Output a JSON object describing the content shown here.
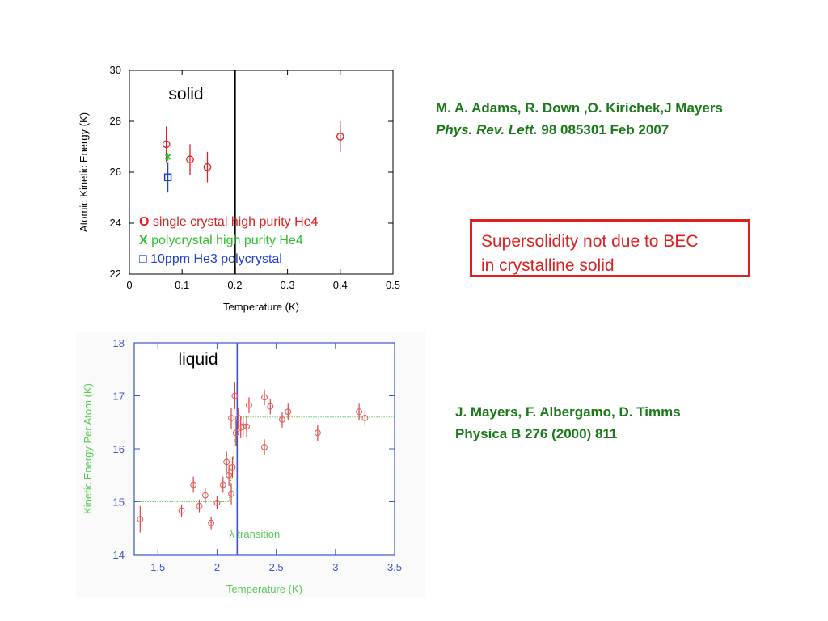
{
  "references": {
    "solid": {
      "authors": "M. A. Adams, R. Down ,O. Kirichek,J Mayers",
      "journal": "Phys. Rev. Lett.",
      "details": " 98 085301 Feb 2007"
    },
    "liquid": {
      "authors": "J. Mayers, F. Albergamo, D. Timms",
      "details": "Physica B 276 (2000) 811"
    }
  },
  "callout": {
    "line1": "Supersolidity not due to BEC",
    "line2": "in crystalline solid"
  },
  "colors": {
    "red": "#e02020",
    "green": "#2fbf2f",
    "blue": "#2040d0",
    "ref_green": "#1a7a1a",
    "liquid_axis": "#3a56c8",
    "liquid_label": "#55cc55",
    "liquid_point": "#e06060"
  },
  "chart_data": [
    {
      "type": "scatter",
      "annotation": "solid",
      "xlabel": "Temperature (K)",
      "ylabel": "Atomic Kinetic Energy (K)",
      "xlim": [
        0,
        0.5
      ],
      "ylim": [
        22,
        30
      ],
      "xticks": [
        "0",
        "0.1",
        "0.2",
        "0.3",
        "0.4",
        "0.5"
      ],
      "yticks": [
        "22",
        "24",
        "26",
        "28",
        "30"
      ],
      "vline": 0.2,
      "legend": [
        {
          "marker": "O",
          "text": " single crystal high purity He4"
        },
        {
          "marker": "X",
          "text": " polycrystal high purity He4"
        },
        {
          "marker": "□",
          "text": " 10ppm He3 polycrystal"
        }
      ],
      "series": [
        {
          "marker": "circle",
          "points": [
            {
              "x": 0.07,
              "y": 27.1,
              "err": 0.7
            },
            {
              "x": 0.115,
              "y": 26.5,
              "err": 0.6
            },
            {
              "x": 0.148,
              "y": 26.2,
              "err": 0.6
            },
            {
              "x": 0.4,
              "y": 27.4,
              "err": 0.6
            }
          ]
        },
        {
          "marker": "cross",
          "points": [
            {
              "x": 0.073,
              "y": 26.6,
              "err": 0.15
            }
          ]
        },
        {
          "marker": "square",
          "points": [
            {
              "x": 0.073,
              "y": 25.8,
              "err": 0.6
            }
          ]
        }
      ]
    },
    {
      "type": "scatter",
      "annotation": "liquid",
      "xlabel": "Temperature (K)",
      "ylabel": "Kinetic Energy Per Atom (K)",
      "xlim": [
        1.3,
        3.5
      ],
      "ylim": [
        14,
        18
      ],
      "xticks": [
        "1.5",
        "2",
        "2.5",
        "3",
        "3.5"
      ],
      "yticks": [
        "14",
        "15",
        "16",
        "17",
        "18"
      ],
      "vline": 2.17,
      "vline_label": "λ transition",
      "fit": [
        [
          1.33,
          15.0
        ],
        [
          2.1,
          15.0
        ],
        [
          2.17,
          16.6
        ],
        [
          3.5,
          16.6
        ]
      ],
      "points": [
        {
          "x": 1.35,
          "y": 14.67,
          "err": 0.25
        },
        {
          "x": 1.7,
          "y": 14.83,
          "err": 0.12
        },
        {
          "x": 1.8,
          "y": 15.32,
          "err": 0.15
        },
        {
          "x": 1.85,
          "y": 14.92,
          "err": 0.12
        },
        {
          "x": 1.9,
          "y": 15.12,
          "err": 0.15
        },
        {
          "x": 1.95,
          "y": 14.6,
          "err": 0.12
        },
        {
          "x": 2.0,
          "y": 14.98,
          "err": 0.12
        },
        {
          "x": 2.05,
          "y": 15.32,
          "err": 0.15
        },
        {
          "x": 2.08,
          "y": 15.75,
          "err": 0.2
        },
        {
          "x": 2.1,
          "y": 15.5,
          "err": 0.2
        },
        {
          "x": 2.12,
          "y": 16.58,
          "err": 0.2
        },
        {
          "x": 2.13,
          "y": 15.65,
          "err": 0.2
        },
        {
          "x": 2.12,
          "y": 15.15,
          "err": 0.2
        },
        {
          "x": 2.15,
          "y": 17.0,
          "err": 0.25
        },
        {
          "x": 2.16,
          "y": 16.3,
          "err": 0.25
        },
        {
          "x": 2.18,
          "y": 16.58,
          "err": 0.2
        },
        {
          "x": 2.2,
          "y": 16.4,
          "err": 0.2
        },
        {
          "x": 2.22,
          "y": 16.42,
          "err": 0.2
        },
        {
          "x": 2.25,
          "y": 16.42,
          "err": 0.2
        },
        {
          "x": 2.27,
          "y": 16.82,
          "err": 0.15
        },
        {
          "x": 2.4,
          "y": 16.97,
          "err": 0.15
        },
        {
          "x": 2.4,
          "y": 16.03,
          "err": 0.15
        },
        {
          "x": 2.45,
          "y": 16.8,
          "err": 0.15
        },
        {
          "x": 2.55,
          "y": 16.55,
          "err": 0.15
        },
        {
          "x": 2.6,
          "y": 16.7,
          "err": 0.15
        },
        {
          "x": 2.85,
          "y": 16.3,
          "err": 0.15
        },
        {
          "x": 3.2,
          "y": 16.7,
          "err": 0.15
        },
        {
          "x": 3.25,
          "y": 16.58,
          "err": 0.15
        }
      ]
    }
  ]
}
